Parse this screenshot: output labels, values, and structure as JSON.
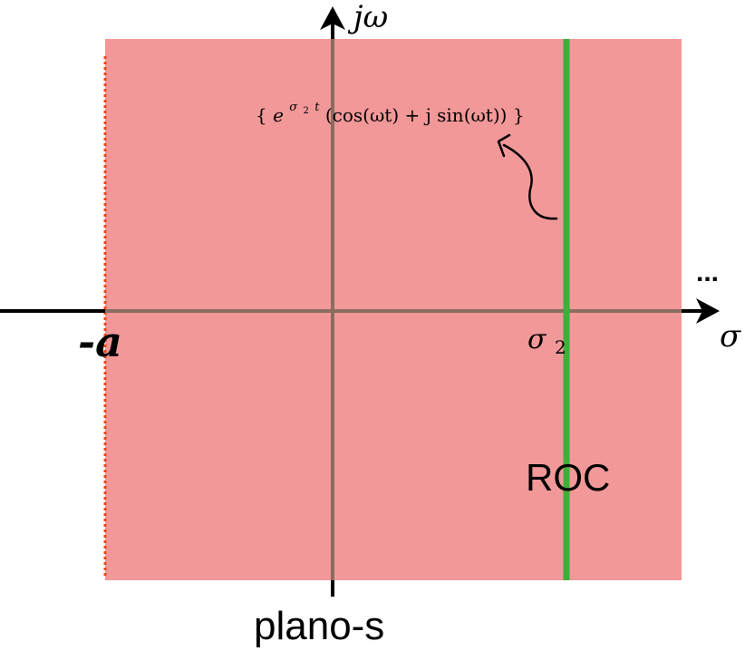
{
  "diagram": {
    "axis_x_label": "σ",
    "axis_y_label": "jω",
    "pole_label": "-a",
    "line_label": "σ",
    "line_label_subscript": "2",
    "region_label": "ROC",
    "plane_label": "plano-s",
    "ellipsis": "...",
    "formula": {
      "open_brace": "{",
      "base": "e",
      "sup_sigma": "σ",
      "sup_sub": "2",
      "sup_t": "t",
      "body": "(cos(ωt) + j sin(ωt))",
      "close_brace": "}"
    }
  },
  "colors": {
    "region_fill": "#f29898",
    "axis_inside": "#8b6c5f",
    "axis_outside": "#000000",
    "roc_line": "#3fae3a",
    "pole_dotted": "#e8491d",
    "text": "#000000"
  }
}
